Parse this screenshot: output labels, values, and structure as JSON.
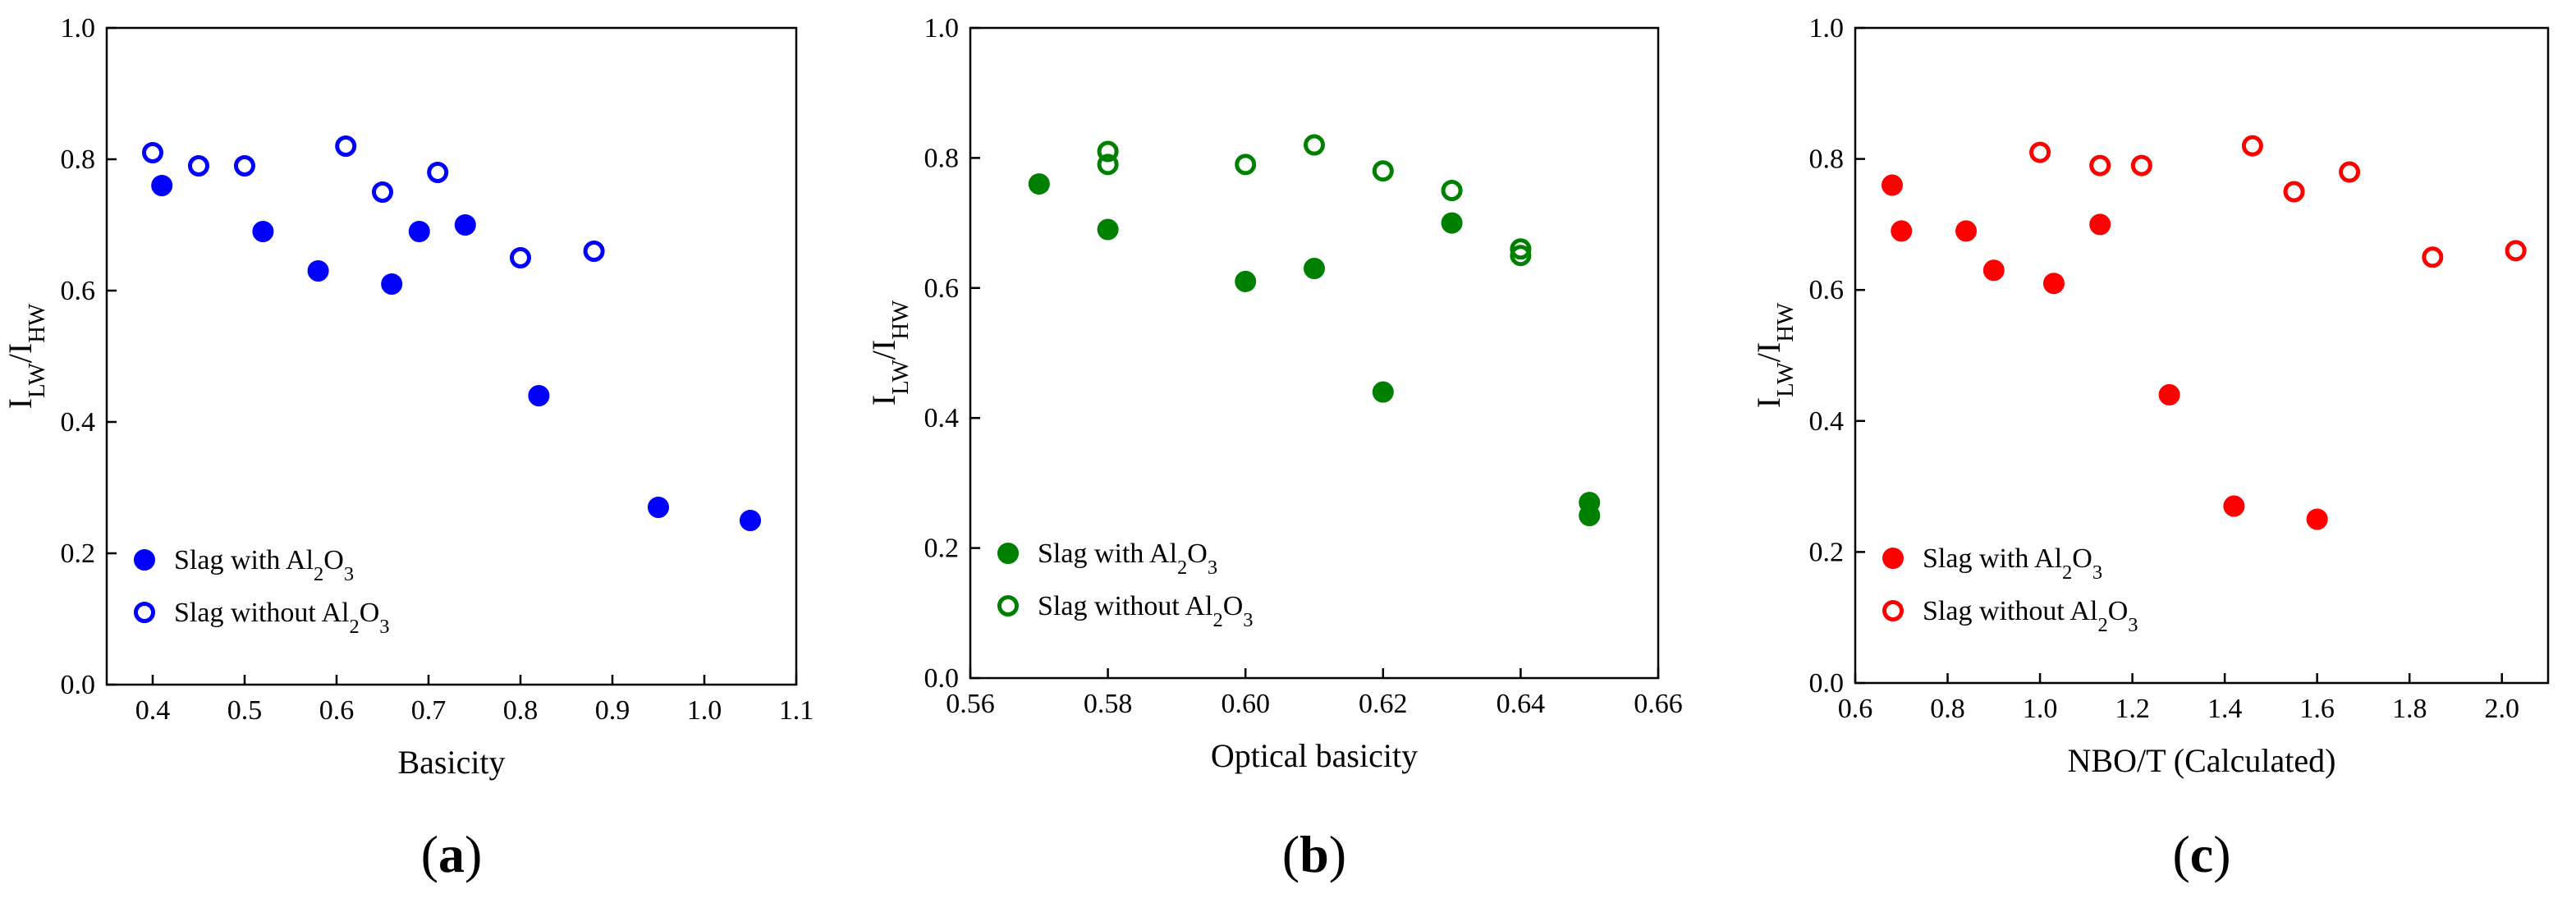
{
  "figure_panels": [
    "a",
    "b",
    "c"
  ],
  "chart_data": [
    {
      "type": "scatter",
      "panel_label": "a",
      "color": "#0000ff",
      "xlabel": "Basicity",
      "ylabel": {
        "base1": "I",
        "sub1": "LW",
        "sep": "/",
        "base2": "I",
        "sub2": "HW"
      },
      "xlim": [
        0.35,
        1.1
      ],
      "ylim": [
        0.0,
        1.0
      ],
      "xticks": [
        0.4,
        0.5,
        0.6,
        0.7,
        0.8,
        0.9,
        1.0,
        1.1
      ],
      "xtick_labels": [
        "0.4",
        "0.5",
        "0.6",
        "0.7",
        "0.8",
        "0.9",
        "1.0",
        "1.1"
      ],
      "yticks": [
        0.0,
        0.2,
        0.4,
        0.6,
        0.8,
        1.0
      ],
      "ytick_labels": [
        "0.0",
        "0.2",
        "0.4",
        "0.6",
        "0.8",
        "1.0"
      ],
      "legend_position": "bottom-left",
      "series": [
        {
          "name": {
            "pre": "Slag with Al",
            "sub1": "2",
            "mid": "O",
            "sub2": "3",
            "post": ""
          },
          "filled": true,
          "x": [
            0.41,
            0.52,
            0.58,
            0.66,
            0.69,
            0.74,
            0.82,
            0.95,
            1.05
          ],
          "y": [
            0.76,
            0.69,
            0.63,
            0.61,
            0.69,
            0.7,
            0.44,
            0.27,
            0.25
          ]
        },
        {
          "name": {
            "pre": "Slag without Al",
            "sub1": "2",
            "mid": "O",
            "sub2": "3",
            "post": ""
          },
          "filled": false,
          "x": [
            0.4,
            0.45,
            0.5,
            0.61,
            0.65,
            0.71,
            0.8,
            0.88
          ],
          "y": [
            0.81,
            0.79,
            0.79,
            0.82,
            0.75,
            0.78,
            0.65,
            0.66
          ]
        }
      ]
    },
    {
      "type": "scatter",
      "panel_label": "b",
      "color": "#008000",
      "xlabel": "Optical basicity",
      "ylabel": {
        "base1": "I",
        "sub1": "LW",
        "sep": "/",
        "base2": "I",
        "sub2": "HW"
      },
      "xlim": [
        0.56,
        0.66
      ],
      "ylim": [
        0.0,
        1.0
      ],
      "xticks": [
        0.56,
        0.58,
        0.6,
        0.62,
        0.64,
        0.66
      ],
      "xtick_labels": [
        "0.56",
        "0.58",
        "0.60",
        "0.62",
        "0.64",
        "0.66"
      ],
      "yticks": [
        0.0,
        0.2,
        0.4,
        0.6,
        0.8,
        1.0
      ],
      "ytick_labels": [
        "0.0",
        "0.2",
        "0.4",
        "0.6",
        "0.8",
        "1.0"
      ],
      "legend_position": "bottom-left",
      "series": [
        {
          "name": {
            "pre": "Slag with Al",
            "sub1": "2",
            "mid": "O",
            "sub2": "3",
            "post": ""
          },
          "filled": true,
          "x": [
            0.57,
            0.58,
            0.6,
            0.61,
            0.62,
            0.63,
            0.65,
            0.65
          ],
          "y": [
            0.76,
            0.69,
            0.61,
            0.63,
            0.44,
            0.7,
            0.27,
            0.25
          ]
        },
        {
          "name": {
            "pre": "Slag without Al",
            "sub1": "2",
            "mid": "O",
            "sub2": "3",
            "post": ""
          },
          "filled": false,
          "x": [
            0.58,
            0.58,
            0.6,
            0.61,
            0.62,
            0.63,
            0.64,
            0.64
          ],
          "y": [
            0.81,
            0.79,
            0.79,
            0.82,
            0.78,
            0.75,
            0.65,
            0.66
          ]
        }
      ]
    },
    {
      "type": "scatter",
      "panel_label": "c",
      "color": "#ff0000",
      "xlabel": "NBO/T (Calculated)",
      "ylabel": {
        "base1": "I",
        "sub1": "LW",
        "sep": "/",
        "base2": "I",
        "sub2": "HW"
      },
      "xlim": [
        0.6,
        2.1
      ],
      "ylim": [
        0.0,
        1.0
      ],
      "xticks": [
        0.6,
        0.8,
        1.0,
        1.2,
        1.4,
        1.6,
        1.8,
        2.0
      ],
      "xtick_labels": [
        "0.6",
        "0.8",
        "1.0",
        "1.2",
        "1.4",
        "1.6",
        "1.8",
        "2.0"
      ],
      "yticks": [
        0.0,
        0.2,
        0.4,
        0.6,
        0.8,
        1.0
      ],
      "ytick_labels": [
        "0.0",
        "0.2",
        "0.4",
        "0.6",
        "0.8",
        "1.0"
      ],
      "legend_position": "bottom-left",
      "series": [
        {
          "name": {
            "pre": "Slag with Al",
            "sub1": "2",
            "mid": "O",
            "sub2": "3",
            "post": ""
          },
          "filled": true,
          "x": [
            0.68,
            0.7,
            0.84,
            0.9,
            1.03,
            1.13,
            1.28,
            1.42,
            1.6
          ],
          "y": [
            0.76,
            0.69,
            0.69,
            0.63,
            0.61,
            0.7,
            0.44,
            0.27,
            0.25
          ]
        },
        {
          "name": {
            "pre": "Slag without Al",
            "sub1": "2",
            "mid": "O",
            "sub2": "3",
            "post": ""
          },
          "filled": false,
          "x": [
            1.0,
            1.13,
            1.22,
            1.46,
            1.55,
            1.67,
            1.85,
            2.03
          ],
          "y": [
            0.81,
            0.79,
            0.79,
            0.82,
            0.75,
            0.78,
            0.65,
            0.66
          ]
        }
      ]
    }
  ]
}
